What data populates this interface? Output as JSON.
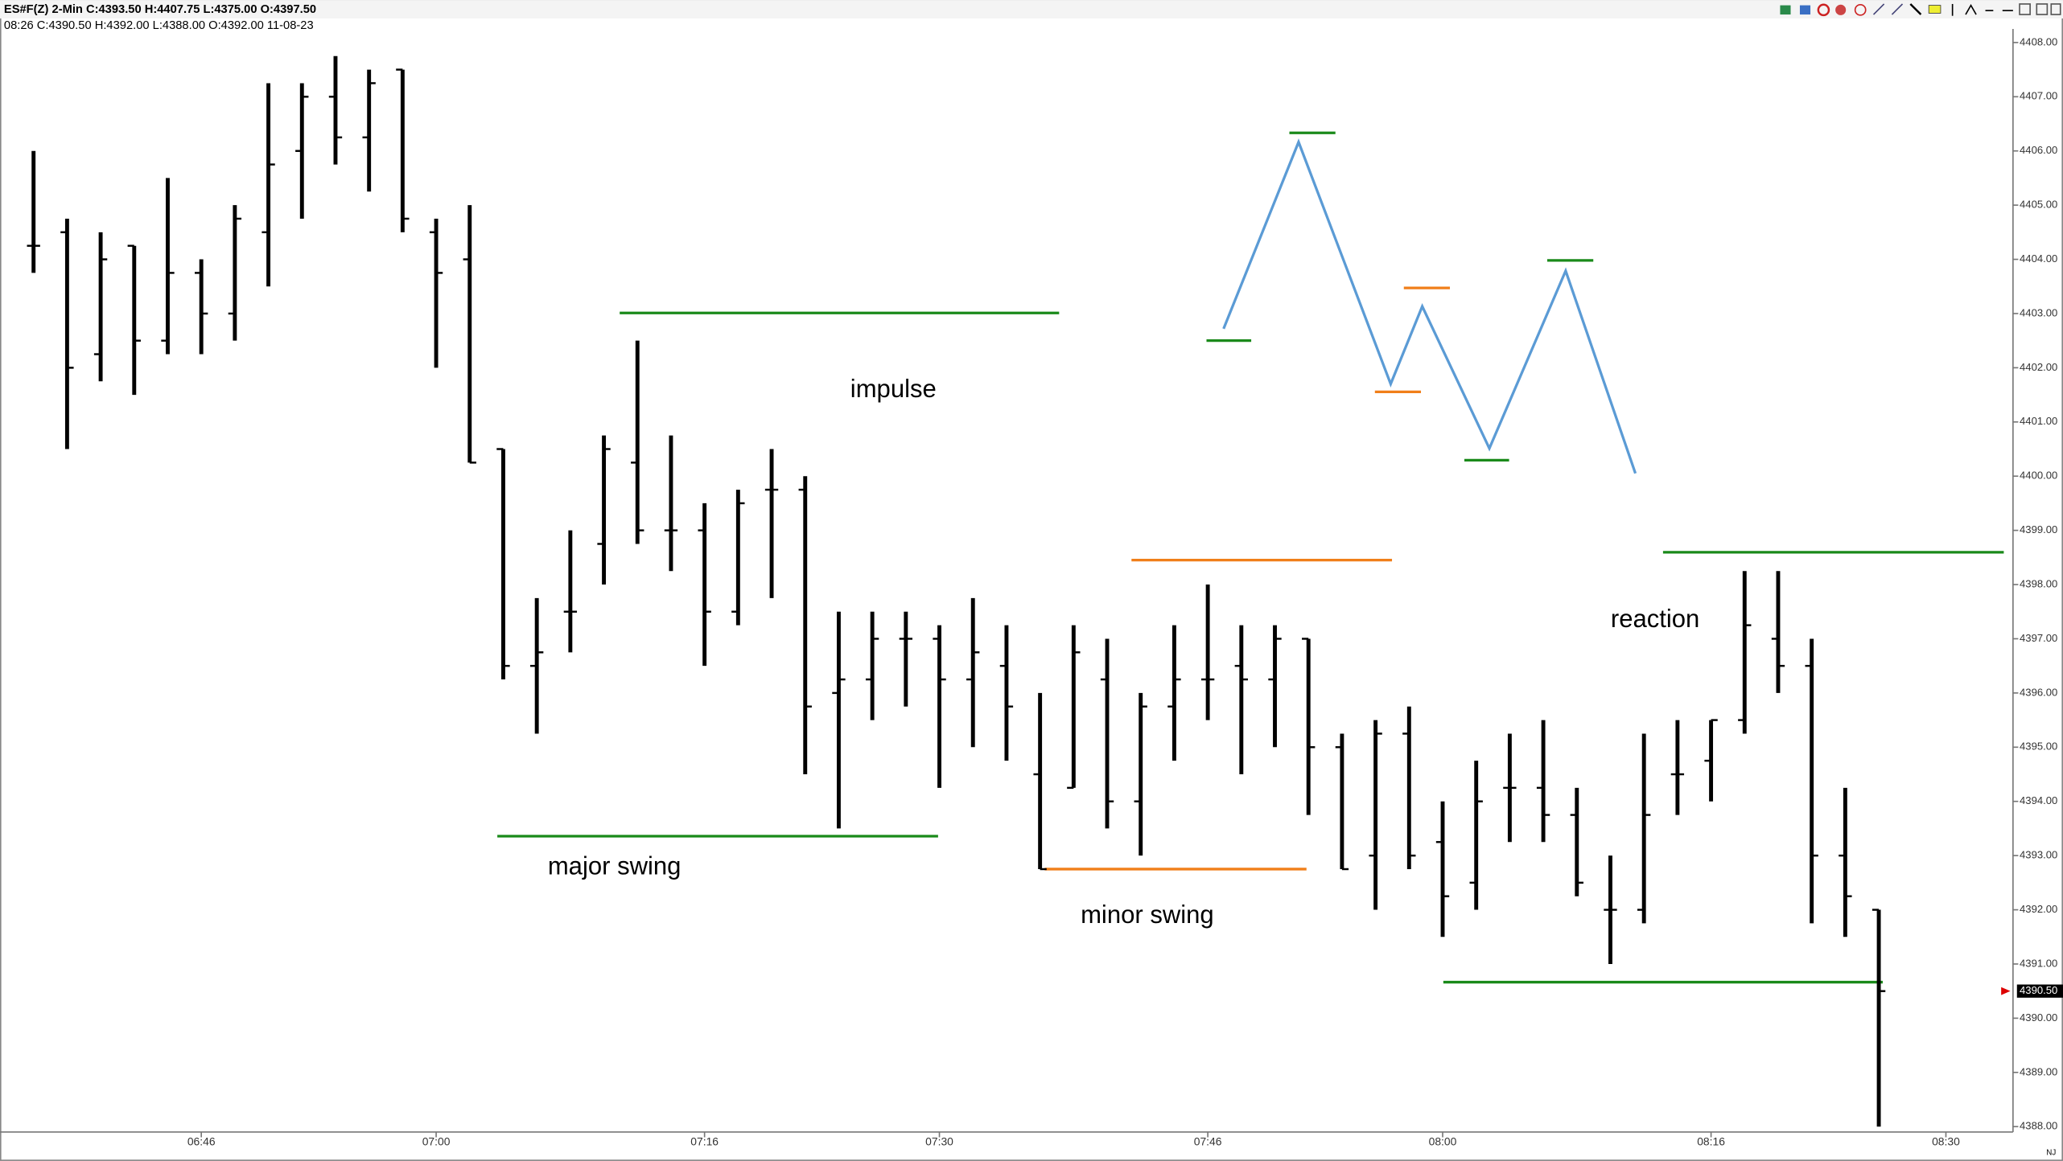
{
  "chart_data": {
    "type": "ohlc",
    "header": "ES#F(Z)  2-Min  C:4393.50  H:4407.75  L:4375.00  O:4397.50",
    "subheader": "08:26  C:4390.50  H:4392.00  L:4388.00  O:4392.00  11-08-23",
    "annotations": [
      "impulse",
      "major swing",
      "minor swing",
      "reaction"
    ],
    "corner_label": "NJ",
    "last_price": {
      "value": 4390.5,
      "label": "4390.50"
    },
    "x": [
      "06:36",
      "06:38",
      "06:40",
      "06:42",
      "06:44",
      "06:46",
      "06:48",
      "06:50",
      "06:52",
      "06:54",
      "06:56",
      "06:58",
      "07:00",
      "07:02",
      "07:04",
      "07:06",
      "07:08",
      "07:10",
      "07:12",
      "07:14",
      "07:16",
      "07:18",
      "07:20",
      "07:22",
      "07:24",
      "07:26",
      "07:28",
      "07:30",
      "07:32",
      "07:34",
      "07:36",
      "07:38",
      "07:40",
      "07:42",
      "07:44",
      "07:46",
      "07:48",
      "07:50",
      "07:52",
      "07:54",
      "07:56",
      "07:58",
      "08:00",
      "08:02",
      "08:04",
      "08:06",
      "08:08",
      "08:10",
      "08:12",
      "08:14",
      "08:16",
      "08:18",
      "08:20",
      "08:22",
      "08:24",
      "08:26"
    ],
    "open": [
      4404.25,
      4404.5,
      4402.25,
      4404.25,
      4402.5,
      4403.75,
      4403.0,
      4404.5,
      4406.0,
      4407.0,
      4406.25,
      4407.5,
      4404.5,
      4404.0,
      4400.5,
      4396.5,
      4397.5,
      4398.75,
      4400.25,
      4399.0,
      4399.0,
      4397.5,
      4399.75,
      4399.75,
      4396.0,
      4396.25,
      4397.0,
      4397.0,
      4396.25,
      4396.5,
      4394.5,
      4394.25,
      4396.25,
      4394.0,
      4395.75,
      4396.25,
      4396.5,
      4396.25,
      4397.0,
      4395.0,
      4393.0,
      4395.25,
      4393.25,
      4392.5,
      4394.25,
      4394.25,
      4393.75,
      4392.0,
      4392.0,
      4394.5,
      4394.75,
      4395.5,
      4397.0,
      4396.5,
      4393.0,
      4392.0
    ],
    "high": [
      4406.0,
      4404.75,
      4404.5,
      4404.25,
      4405.5,
      4404.0,
      4405.0,
      4407.25,
      4407.25,
      4407.75,
      4407.5,
      4407.5,
      4404.75,
      4405.0,
      4400.5,
      4397.75,
      4399.0,
      4400.75,
      4402.5,
      4400.75,
      4399.5,
      4399.75,
      4400.5,
      4400.0,
      4397.5,
      4397.5,
      4397.5,
      4397.25,
      4397.75,
      4397.25,
      4396.0,
      4397.25,
      4397.0,
      4396.0,
      4397.25,
      4398.0,
      4397.25,
      4397.25,
      4397.0,
      4395.25,
      4395.5,
      4395.75,
      4394.0,
      4394.75,
      4395.25,
      4395.5,
      4394.25,
      4393.0,
      4395.25,
      4395.5,
      4395.5,
      4398.25,
      4398.25,
      4397.0,
      4394.25,
      4392.0
    ],
    "low": [
      4403.75,
      4400.5,
      4401.75,
      4401.5,
      4402.25,
      4402.25,
      4402.5,
      4403.5,
      4404.75,
      4405.75,
      4405.25,
      4404.5,
      4402.0,
      4400.25,
      4396.25,
      4395.25,
      4396.75,
      4398.0,
      4398.75,
      4398.25,
      4396.5,
      4397.25,
      4397.75,
      4394.5,
      4393.5,
      4395.5,
      4395.75,
      4394.25,
      4395.0,
      4394.75,
      4392.75,
      4394.25,
      4393.5,
      4393.0,
      4394.75,
      4395.5,
      4394.5,
      4395.0,
      4393.75,
      4392.75,
      4392.0,
      4392.75,
      4391.5,
      4392.0,
      4393.25,
      4393.25,
      4392.25,
      4391.0,
      4391.75,
      4393.75,
      4394.0,
      4395.25,
      4396.0,
      4391.75,
      4391.5,
      4388.0
    ],
    "close": [
      4404.25,
      4402.0,
      4404.0,
      4402.5,
      4403.75,
      4403.0,
      4404.75,
      4405.75,
      4407.0,
      4406.25,
      4407.25,
      4404.75,
      4403.75,
      4400.25,
      4396.5,
      4396.75,
      4397.5,
      4400.5,
      4399.0,
      4399.0,
      4397.5,
      4399.5,
      4399.75,
      4395.75,
      4396.25,
      4397.0,
      4397.0,
      4396.25,
      4396.75,
      4395.75,
      4392.75,
      4396.75,
      4394.0,
      4395.75,
      4396.25,
      4396.25,
      4396.25,
      4397.0,
      4395.0,
      4392.75,
      4395.25,
      4393.0,
      4392.25,
      4394.0,
      4394.25,
      4393.75,
      4392.5,
      4392.0,
      4393.75,
      4394.5,
      4395.5,
      4397.25,
      4396.5,
      4393.0,
      4392.25,
      4390.5
    ],
    "color": "#000000",
    "xlim": [
      "06:34",
      "08:34"
    ],
    "xticks": [
      "06:46",
      "07:00",
      "07:16",
      "07:30",
      "07:46",
      "08:00",
      "08:16",
      "08:30"
    ],
    "ylim": [
      4387.9,
      4408.25
    ],
    "yticks": [
      {
        "value": 4388,
        "label": "4388.00"
      },
      {
        "value": 4389,
        "label": "4389.00"
      },
      {
        "value": 4390,
        "label": "4390.00"
      },
      {
        "value": 4391,
        "label": "4391.00"
      },
      {
        "value": 4392,
        "label": "4392.00"
      },
      {
        "value": 4393,
        "label": "4393.00"
      },
      {
        "value": 4394,
        "label": "4394.00"
      },
      {
        "value": 4395,
        "label": "4395.00"
      },
      {
        "value": 4396,
        "label": "4396.00"
      },
      {
        "value": 4397,
        "label": "4397.00"
      },
      {
        "value": 4398,
        "label": "4398.00"
      },
      {
        "value": 4399,
        "label": "4399.00"
      },
      {
        "value": 4400,
        "label": "4400.00"
      },
      {
        "value": 4401,
        "label": "4401.00"
      },
      {
        "value": 4402,
        "label": "4402.00"
      },
      {
        "value": 4403,
        "label": "4403.00"
      },
      {
        "value": 4404,
        "label": "4404.00"
      },
      {
        "value": 4405,
        "label": "4405.00"
      },
      {
        "value": 4406,
        "label": "4406.00"
      },
      {
        "value": 4407,
        "label": "4407.00"
      },
      {
        "value": 4408,
        "label": "4408.00"
      }
    ]
  }
}
